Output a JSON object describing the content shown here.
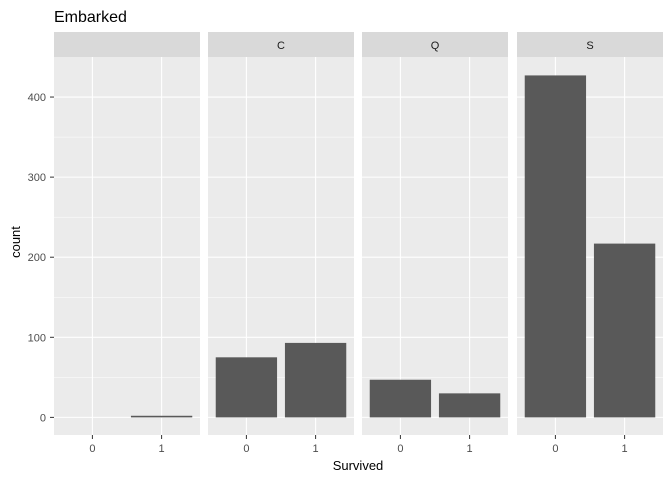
{
  "chart_data": {
    "type": "bar",
    "title": "Embarked",
    "xlabel": "Survived",
    "ylabel": "count",
    "facet_variable": "Embarked",
    "categories": [
      "0",
      "1"
    ],
    "ylim": [
      -22,
      450
    ],
    "y_ticks": [
      0,
      100,
      200,
      300,
      400
    ],
    "grid": true,
    "facets": [
      {
        "label": "",
        "values": [
          0,
          2
        ]
      },
      {
        "label": "C",
        "values": [
          75,
          93
        ]
      },
      {
        "label": "Q",
        "values": [
          47,
          30
        ]
      },
      {
        "label": "S",
        "values": [
          427,
          217
        ]
      }
    ],
    "colors": {
      "bar": "#595959",
      "panel_bg": "#ebebeb",
      "strip_bg": "#d9d9d9",
      "grid": "#ffffff",
      "text": "#000000",
      "tick_text": "#4d4d4d",
      "strip_text": "#1a1a1a"
    }
  }
}
